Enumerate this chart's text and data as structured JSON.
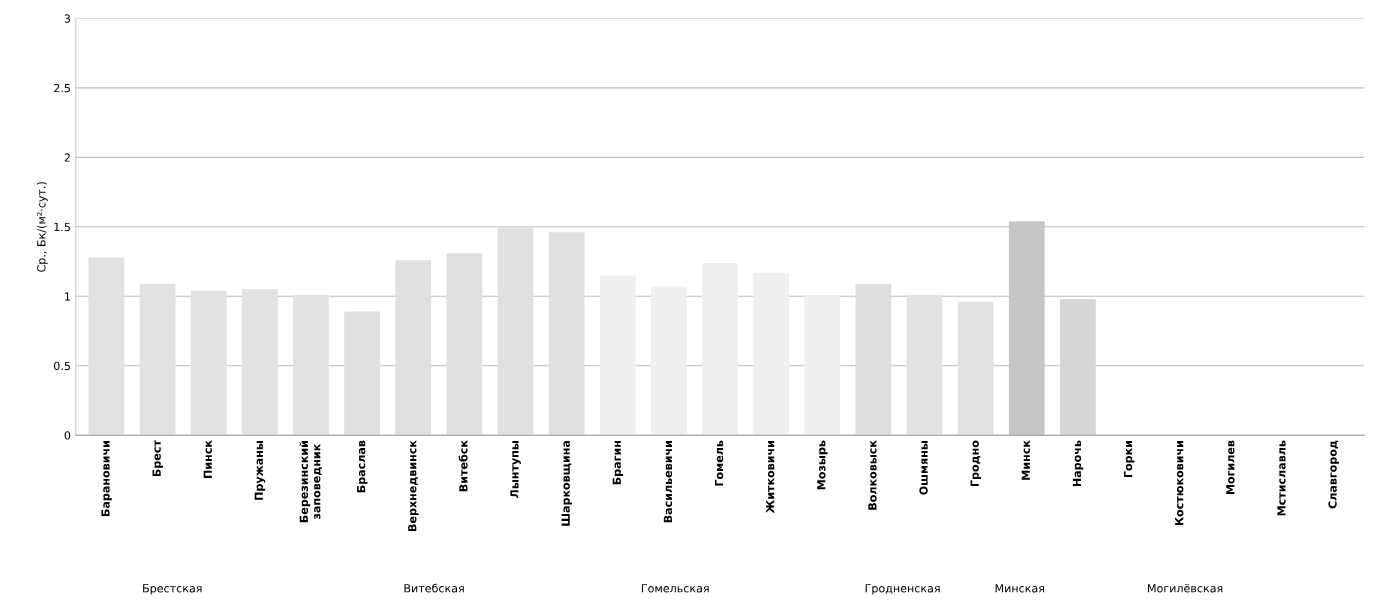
{
  "chart_data": {
    "type": "bar",
    "ylabel": "Ср., Бк/(м²·сут.)",
    "categories": [
      "Барановичи",
      "Брест",
      "Пинск",
      "Пружаны",
      "Березинский заповедник",
      "Браслав",
      "Верхнедвинск",
      "Витебск",
      "Лынтупы",
      "Шарковщина",
      "Брагин",
      "Васильевичи",
      "Гомель",
      "Житковичи",
      "Мозырь",
      "Волковыск",
      "Ошмяны",
      "Гродно",
      "Минск",
      "Нарочь",
      "Горки",
      "Костюковичи",
      "Могилев",
      "Мстиславль",
      "Славгород"
    ],
    "values": [
      1.28,
      1.09,
      1.04,
      1.05,
      1.01,
      0.89,
      1.26,
      1.31,
      1.5,
      1.46,
      1.15,
      1.07,
      1.24,
      1.17,
      1.01,
      1.09,
      1.01,
      0.96,
      1.54,
      0.98,
      null,
      null,
      null,
      null,
      null
    ],
    "colors": [
      "#e2e2e2",
      "#e2e2e2",
      "#e2e2e2",
      "#e2e2e2",
      "#e2e2e2",
      "#e0e0e0",
      "#e0e0e0",
      "#e0e0e0",
      "#e0e0e0",
      "#e0e0e0",
      "#efefef",
      "#efefef",
      "#efefef",
      "#efefef",
      "#efefef",
      "#dedede",
      "#e2e2e2",
      "#e2e2e2",
      "#c6c6c6",
      "#d6d6d6",
      "#e0e0e0",
      "#e0e0e0",
      "#e0e0e0",
      "#e0e0e0",
      "#e0e0e0"
    ],
    "ylim": [
      0,
      3
    ],
    "yticks": [
      0,
      0.5,
      1,
      1.5,
      2,
      2.5,
      3
    ],
    "grid": "y",
    "annotations": [
      "Брестская",
      "Витебская",
      "Гомельская",
      "Гродненская",
      "Минская",
      "Могилёвская"
    ]
  }
}
